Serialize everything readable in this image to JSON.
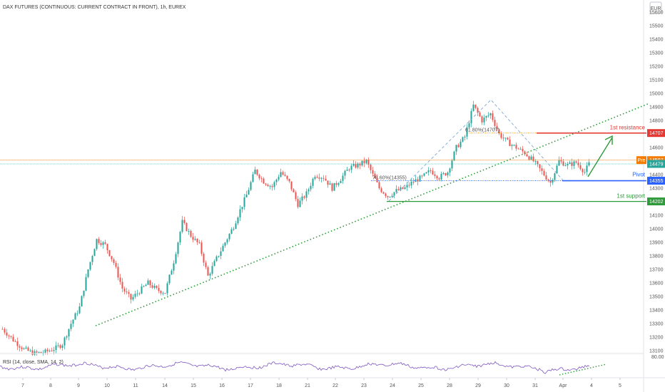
{
  "title": "DAX FUTURES (CONTINUOUS: CURRENT CONTRACT IN FRONT), 1h, EUREX",
  "currency": "EUR",
  "colors": {
    "up": "#26a69a",
    "down": "#ef5350",
    "trend": "#2e9b3a",
    "resistance": "#e53935",
    "pivot": "#2962ff",
    "support": "#2e9b3a",
    "fib_blue": "#2962ff",
    "fib_orange": "#ff9800",
    "rsi": "#7e57c2",
    "pre": "#f57c00",
    "last": "#26a69a"
  },
  "chart_data": {
    "type": "candlestick",
    "symbol": "DAX FUTURES",
    "timeframe": "1h",
    "y_range": [
      13060,
      15660
    ],
    "y_ticks": [
      13100,
      13200,
      13300,
      13400,
      13500,
      13600,
      13700,
      13800,
      13900,
      14000,
      14100,
      14200,
      14300,
      14400,
      14500,
      14600,
      14700,
      14800,
      14900,
      15000,
      15100,
      15200,
      15300,
      15400,
      15500,
      15600
    ],
    "x_ticks": [
      "7",
      "8",
      "9",
      "10",
      "11",
      "14",
      "15",
      "16",
      "17",
      "18",
      "21",
      "22",
      "23",
      "24",
      "25",
      "28",
      "29",
      "30",
      "31",
      "Apr",
      "4",
      "5"
    ],
    "price_path": [
      [
        0,
        13260
      ],
      [
        5,
        13180
      ],
      [
        10,
        13110
      ],
      [
        15,
        13080
      ],
      [
        20,
        13090
      ],
      [
        25,
        13120
      ],
      [
        28,
        13150
      ],
      [
        32,
        13300
      ],
      [
        36,
        13420
      ],
      [
        40,
        13700
      ],
      [
        44,
        13920
      ],
      [
        48,
        13880
      ],
      [
        52,
        13750
      ],
      [
        56,
        13560
      ],
      [
        60,
        13480
      ],
      [
        64,
        13540
      ],
      [
        68,
        13600
      ],
      [
        72,
        13550
      ],
      [
        76,
        13530
      ],
      [
        80,
        13760
      ],
      [
        84,
        14050
      ],
      [
        88,
        13950
      ],
      [
        92,
        13880
      ],
      [
        96,
        13650
      ],
      [
        100,
        13780
      ],
      [
        104,
        13900
      ],
      [
        108,
        14020
      ],
      [
        110,
        14100
      ],
      [
        114,
        14250
      ],
      [
        118,
        14430
      ],
      [
        122,
        14350
      ],
      [
        126,
        14310
      ],
      [
        130,
        14420
      ],
      [
        134,
        14340
      ],
      [
        138,
        14180
      ],
      [
        142,
        14260
      ],
      [
        146,
        14400
      ],
      [
        150,
        14380
      ],
      [
        154,
        14300
      ],
      [
        158,
        14370
      ],
      [
        162,
        14450
      ],
      [
        166,
        14470
      ],
      [
        170,
        14500
      ],
      [
        172,
        14430
      ],
      [
        176,
        14300
      ],
      [
        180,
        14240
      ],
      [
        184,
        14280
      ],
      [
        188,
        14300
      ],
      [
        192,
        14350
      ],
      [
        196,
        14380
      ],
      [
        200,
        14430
      ],
      [
        204,
        14380
      ],
      [
        208,
        14420
      ],
      [
        212,
        14600
      ],
      [
        216,
        14680
      ],
      [
        220,
        14910
      ],
      [
        224,
        14800
      ],
      [
        228,
        14850
      ],
      [
        232,
        14700
      ],
      [
        236,
        14640
      ],
      [
        240,
        14600
      ],
      [
        244,
        14560
      ],
      [
        248,
        14500
      ],
      [
        252,
        14420
      ],
      [
        256,
        14340
      ],
      [
        260,
        14500
      ],
      [
        264,
        14470
      ],
      [
        268,
        14490
      ],
      [
        272,
        14420
      ],
      [
        274,
        14479
      ]
    ],
    "levels": [
      {
        "name": "1st resistance",
        "value": 14707
      },
      {
        "name": "Pivot",
        "value": 14355
      },
      {
        "name": "1st support",
        "value": 14202
      }
    ],
    "fib_labels": [
      {
        "text": "61.80%(14707)",
        "value": 14707
      },
      {
        "text": "78.60%(14355)",
        "value": 14355
      }
    ],
    "price_tags": [
      {
        "text": "14707",
        "value": 14707,
        "kind": "resistance"
      },
      {
        "text": "14507",
        "value": 14507,
        "kind": "pre",
        "prefix": "Pre"
      },
      {
        "text": "14479",
        "value": 14479,
        "kind": "last"
      },
      {
        "text": "14355",
        "value": 14355,
        "kind": "pivot"
      },
      {
        "text": "14202",
        "value": 14202,
        "kind": "support"
      }
    ],
    "rsi": {
      "label": "RSI (14, close, SMA, 14, 2)",
      "tick": "80.00"
    }
  }
}
